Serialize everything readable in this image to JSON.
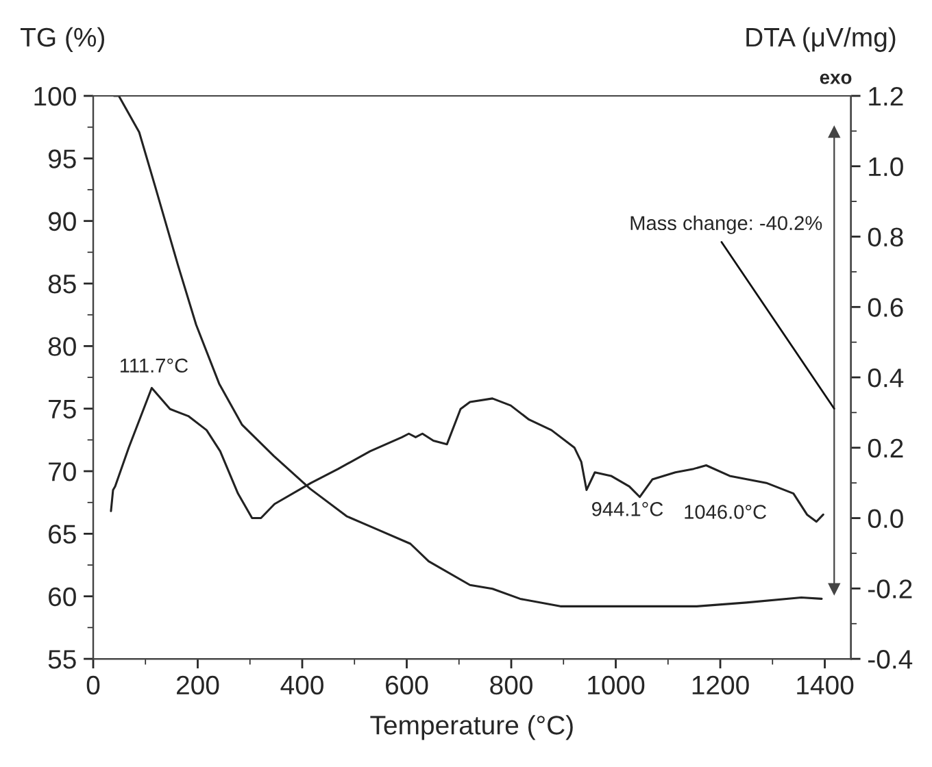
{
  "chart_data": {
    "type": "line",
    "xlabel": "Temperature (°C)",
    "ylabel": "TG (%)",
    "y2label": "DTA (μV/mg)",
    "xlim": [
      0,
      1450
    ],
    "xticks": [
      0,
      200,
      400,
      600,
      800,
      1000,
      1200,
      1400
    ],
    "ylim": [
      55,
      100
    ],
    "yticks": [
      55,
      60,
      65,
      70,
      75,
      80,
      85,
      90,
      95,
      100
    ],
    "y2lim": [
      -0.4,
      1.2
    ],
    "y2ticks": [
      {
        "value": -0.4,
        "label": "-0.4"
      },
      {
        "value": -0.2,
        "label": "-0.2"
      },
      {
        "value": 0,
        "label": "0.0"
      },
      {
        "value": 0.2,
        "label": "0.2"
      },
      {
        "value": 0.4,
        "label": "0.4"
      },
      {
        "value": 0.6,
        "label": "0.6"
      },
      {
        "value": 0.8,
        "label": "0.8"
      },
      {
        "value": 1.0,
        "label": "1.0"
      },
      {
        "value": 1.2,
        "label": "1.2"
      }
    ],
    "grid": false,
    "legend": false,
    "marker": "none",
    "line_style": "solid",
    "series": [
      {
        "color": "#444444",
        "marker": "triangle",
        "x": [
          1418,
          1418
        ],
        "values": [
          97.1,
          60.6
        ]
      },
      {
        "color": "#222222",
        "x": [
          40,
          49,
          88,
          119,
          162,
          197,
          241,
          285,
          346,
          415,
          485,
          546,
          607,
          642,
          721,
          764,
          817,
          894,
          1000,
          1155,
          1250,
          1355,
          1394
        ],
        "values": [
          100,
          100,
          97.1,
          92.7,
          86.5,
          81.7,
          77.0,
          73.7,
          71.2,
          68.6,
          66.4,
          65.3,
          64.2,
          62.8,
          60.9,
          60.6,
          59.8,
          59.2,
          59.2,
          59.2,
          59.5,
          59.9,
          59.8
        ]
      },
      {
        "color": "#222222",
        "axis": "y2",
        "x": [
          34,
          38,
          42,
          68,
          112,
          147,
          182,
          217,
          243,
          277,
          304,
          321,
          347,
          417,
          469,
          530,
          591,
          604,
          617,
          630,
          651,
          677,
          703,
          721,
          764,
          799,
          834,
          877,
          921,
          934,
          944.1,
          960,
          991,
          1026,
          1046,
          1070,
          1114,
          1149,
          1173,
          1218,
          1288,
          1340,
          1366,
          1384,
          1397
        ],
        "values": [
          0.02,
          0.08,
          0.09,
          0.2,
          0.37,
          0.31,
          0.29,
          0.25,
          0.19,
          0.07,
          0.0,
          0.0,
          0.04,
          0.1,
          0.14,
          0.19,
          0.23,
          0.24,
          0.23,
          0.24,
          0.22,
          0.21,
          0.31,
          0.33,
          0.34,
          0.32,
          0.28,
          0.25,
          0.2,
          0.16,
          0.08,
          0.13,
          0.12,
          0.09,
          0.06,
          0.11,
          0.13,
          0.14,
          0.15,
          0.12,
          0.1,
          0.07,
          0.01,
          -0.01,
          0.01
        ]
      }
    ],
    "annotations": [
      "111.7°C",
      "944.1°C",
      "1046.0°C",
      {
        "text": "Mass change: -40.2%",
        "x": 1418,
        "y": 75.0
      },
      "exo"
    ]
  }
}
